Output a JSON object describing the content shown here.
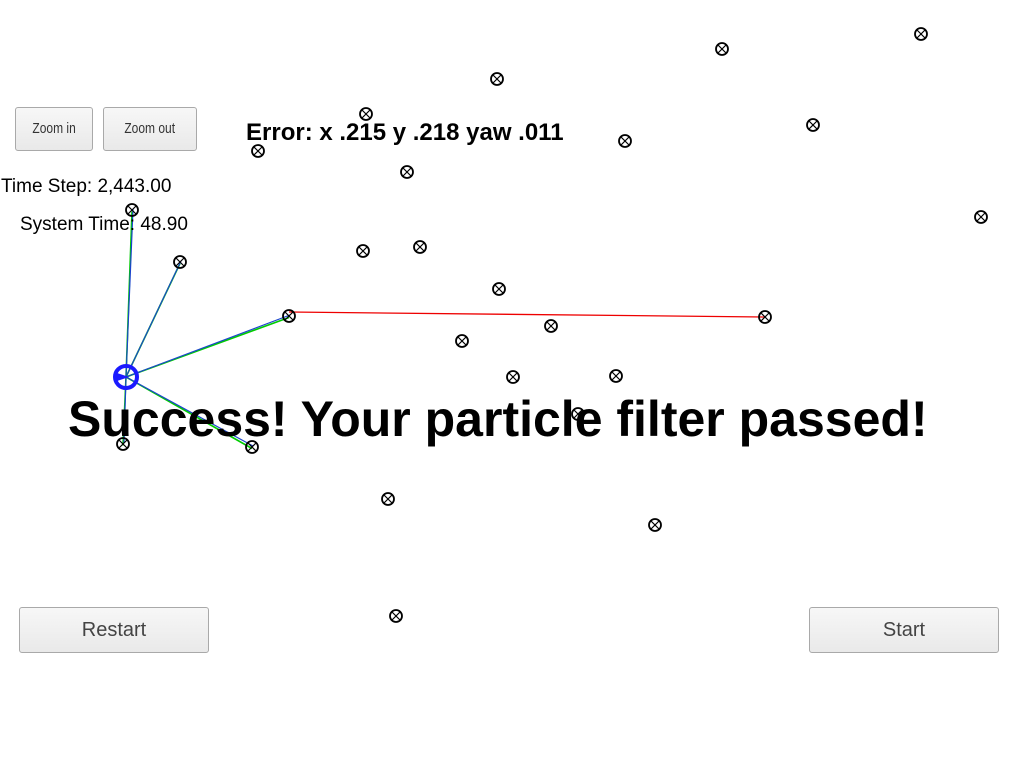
{
  "controls": {
    "zoom_in": "Zoom in",
    "zoom_out": "Zoom out",
    "restart": "Restart",
    "start": "Start"
  },
  "status": {
    "error": "Error: x .215 y .218 yaw .011",
    "time_step": "Time Step: 2,443.00",
    "system_time": "System Time: 48.90",
    "result": "Success! Your particle filter passed!"
  },
  "colors": {
    "landmark": "#000000",
    "vehicle": "#1a1aff",
    "ground_truth_line": "#00cc00",
    "observation_line": "#1a44cc",
    "heading_line": "#ee0000"
  }
}
